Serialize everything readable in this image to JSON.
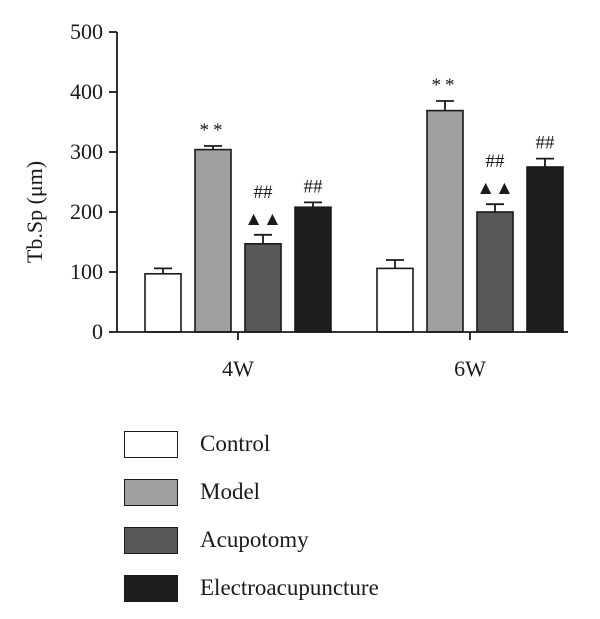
{
  "chart_data": {
    "type": "bar",
    "ylabel": "Tb.Sp (μm)",
    "ylim": [
      0,
      500
    ],
    "yticks": [
      0,
      100,
      200,
      300,
      400,
      500
    ],
    "categories": [
      "4W",
      "6W"
    ],
    "series": [
      {
        "name": "Control",
        "color": "#ffffff",
        "values": [
          97,
          106
        ],
        "errors": [
          9,
          14
        ],
        "annotations": [
          "",
          ""
        ]
      },
      {
        "name": "Model",
        "color": "#a0a0a0",
        "values": [
          304,
          369
        ],
        "errors": [
          6,
          16
        ],
        "annotations": [
          "**",
          "**"
        ]
      },
      {
        "name": "Acupotomy",
        "color": "#585858",
        "values": [
          147,
          200
        ],
        "errors": [
          15,
          13
        ],
        "annotations": [
          "##|▲▲",
          "##|▲▲"
        ]
      },
      {
        "name": "Electroacupuncture",
        "color": "#1e1e1e",
        "values": [
          208,
          275
        ],
        "errors": [
          8,
          14
        ],
        "annotations": [
          "##",
          "##"
        ]
      }
    ],
    "grid": false,
    "legend_position": "bottom"
  }
}
